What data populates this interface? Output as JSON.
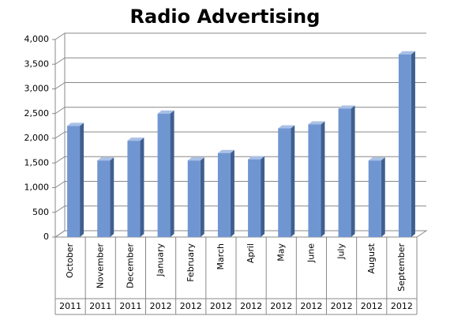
{
  "chart_data": {
    "type": "bar",
    "title": "Radio Advertising",
    "categories": [
      "October",
      "November",
      "December",
      "January",
      "February",
      "March",
      "April",
      "May",
      "June",
      "July",
      "August",
      "September"
    ],
    "years": [
      "2011",
      "2011",
      "2011",
      "2012",
      "2012",
      "2012",
      "2012",
      "2012",
      "2012",
      "2012",
      "2012",
      "2012"
    ],
    "values": [
      2250,
      1550,
      1950,
      2500,
      1550,
      1700,
      1575,
      2200,
      2280,
      2600,
      1550,
      3700
    ],
    "color": "#7096d2",
    "ylim": [
      0,
      4000
    ],
    "yticks": [
      0,
      500,
      {
        "value": 1000,
        "label": "1,000"
      },
      {
        "value": 1500,
        "label": "1,500"
      },
      {
        "value": 2000,
        "label": "2,000"
      },
      {
        "value": 2500,
        "label": "2,500"
      },
      {
        "value": 3000,
        "label": "3,000"
      },
      {
        "value": 3500,
        "label": "3,500"
      },
      {
        "value": 4000,
        "label": "4,000"
      }
    ],
    "grid": true
  }
}
